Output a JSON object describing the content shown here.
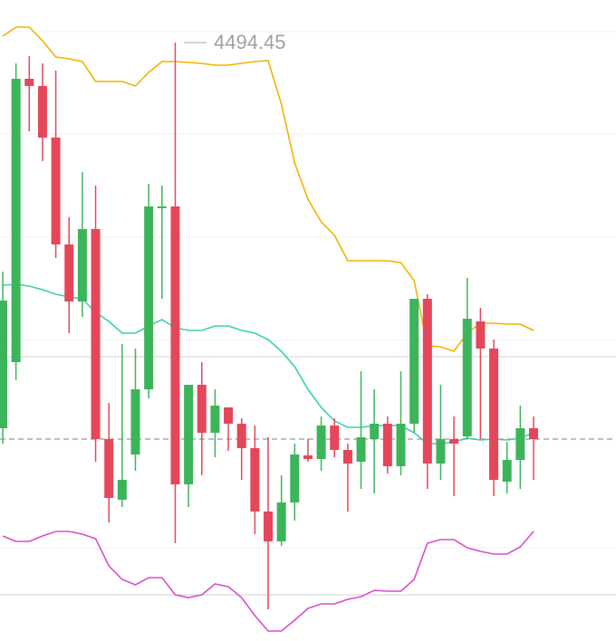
{
  "chart_data": {
    "type": "candlestick",
    "annotation": "4494.45",
    "ylim": [
      4329.2,
      4506.2
    ],
    "up_color": "#3cb55a",
    "down_color": "#e5475a",
    "open": [
      4387.95,
      4406.2,
      4484.45,
      4482.45,
      4468.2,
      4438.7,
      4422.95,
      4442.95,
      4384.95,
      4368.2,
      4380.7,
      4398.7,
      4448.7,
      4449.2,
      4372.45,
      4399.95,
      4386.7,
      4393.7,
      4389.2,
      4382.45,
      4364.95,
      4356.7,
      4367.45,
      4380.45,
      4379.45,
      4388.7,
      4381.95,
      4378.7,
      4384.95,
      4389.2,
      4377.45,
      4389.2,
      4423.7,
      4378.2,
      4384.95,
      4385.7,
      4417.45,
      4409.95,
      4373.2,
      4379.2,
      4387.95
    ],
    "high": [
      4431.2,
      4488.7,
      4490.7,
      4488.7,
      4486.7,
      4446.2,
      4458.7,
      4454.95,
      4394.95,
      4411.2,
      4409.95,
      4455.45,
      4454.95,
      4494.45,
      4399.95,
      4406.2,
      4398.7,
      4393.7,
      4390.7,
      4388.7,
      4385.45,
      4374.95,
      4383.7,
      4384.95,
      4391.2,
      4390.7,
      4383.7,
      4403.7,
      4398.7,
      4391.2,
      4403.7,
      4423.7,
      4424.95,
      4399.95,
      4391.2,
      4429.45,
      4421.2,
      4412.45,
      4384.2,
      4394.2,
      4391.2
    ],
    "low": [
      4383.7,
      4401.2,
      4469.95,
      4461.7,
      4434.95,
      4414.2,
      4418.7,
      4378.7,
      4361.95,
      4366.2,
      4376.2,
      4396.2,
      4423.7,
      4356.2,
      4366.2,
      4374.95,
      4379.95,
      4381.7,
      4373.7,
      4358.7,
      4337.95,
      4355.45,
      4362.45,
      4378.7,
      4376.2,
      4379.95,
      4364.95,
      4371.2,
      4369.95,
      4375.45,
      4374.95,
      4386.7,
      4371.2,
      4373.7,
      4369.2,
      4384.95,
      4384.95,
      4369.2,
      4369.95,
      4371.2,
      4373.7
    ],
    "close": [
      4423.2,
      4484.45,
      4482.45,
      4468.2,
      4438.7,
      4422.95,
      4442.95,
      4384.95,
      4368.7,
      4373.7,
      4398.7,
      4449.2,
      4449.2,
      4372.45,
      4399.95,
      4386.7,
      4394.2,
      4389.2,
      4382.45,
      4364.95,
      4356.7,
      4367.45,
      4380.7,
      4379.45,
      4388.7,
      4381.95,
      4378.2,
      4385.45,
      4389.2,
      4377.45,
      4389.2,
      4423.7,
      4378.2,
      4384.95,
      4383.7,
      4418.2,
      4409.95,
      4373.7,
      4379.2,
      4387.95,
      4384.95
    ],
    "overlays": [
      {
        "color": "#f0b400",
        "values": [
          4496.2,
          4498.7,
          4498.7,
          4494.95,
          4490.45,
          4489.95,
          4489.2,
          4483.7,
          4483.7,
          4483.7,
          4482.45,
          4486.2,
          4489.2,
          4489.2,
          4488.95,
          4488.7,
          4488.2,
          4488.2,
          4488.7,
          4489.2,
          4489.45,
          4477.45,
          4461.2,
          4451.2,
          4444.95,
          4441.2,
          4434.2,
          4434.2,
          4434.2,
          4434.2,
          4433.7,
          4428.7,
          4410.7,
          4410.45,
          4409.2,
          4414.2,
          4416.95,
          4416.95,
          4416.7,
          4416.7,
          4414.95
        ]
      },
      {
        "color": "#3ccfb0",
        "values": [
          4427.45,
          4427.7,
          4427.2,
          4426.2,
          4424.95,
          4424.2,
          4423.7,
          4419.95,
          4417.45,
          4414.2,
          4414.2,
          4416.2,
          4417.95,
          4415.7,
          4414.95,
          4414.95,
          4416.2,
          4416.2,
          4414.95,
          4414.2,
          4412.45,
          4409.2,
          4404.95,
          4398.7,
          4393.7,
          4389.95,
          4388.2,
          4388.2,
          4388.7,
          4388.7,
          4388.7,
          4386.7,
          4383.7,
          4383.7,
          4384.2,
          4385.2,
          4384.7,
          4384.95,
          4384.7,
          4385.2,
          4386.7
        ]
      },
      {
        "color": "#d84fc8",
        "values": [
          4358.2,
          4356.7,
          4356.7,
          4358.2,
          4359.45,
          4359.45,
          4358.7,
          4357.45,
          4349.95,
          4346.2,
          4344.7,
          4346.7,
          4346.7,
          4341.95,
          4341.2,
          4341.95,
          4344.95,
          4344.2,
          4341.2,
          4336.2,
          4331.95,
          4331.95,
          4334.95,
          4338.2,
          4339.45,
          4339.45,
          4340.7,
          4341.45,
          4343.2,
          4342.95,
          4342.95,
          4346.2,
          4356.2,
          4357.2,
          4357.2,
          4354.95,
          4353.95,
          4353.2,
          4353.2,
          4355.2,
          4359.45
        ]
      }
    ]
  }
}
